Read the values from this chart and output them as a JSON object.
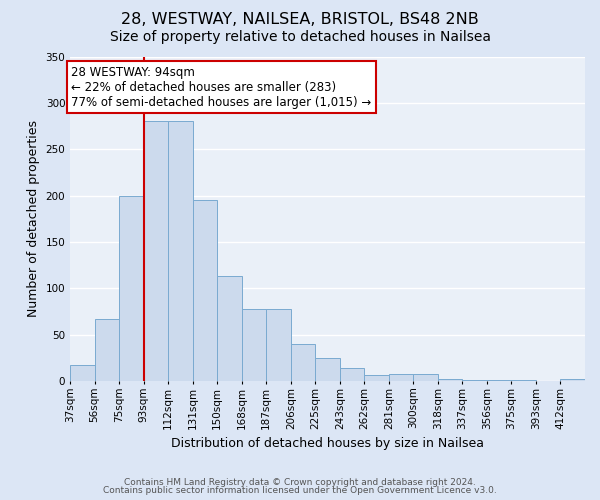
{
  "title": "28, WESTWAY, NAILSEA, BRISTOL, BS48 2NB",
  "subtitle": "Size of property relative to detached houses in Nailsea",
  "xlabel": "Distribution of detached houses by size in Nailsea",
  "ylabel": "Number of detached properties",
  "bin_labels": [
    "37sqm",
    "56sqm",
    "75sqm",
    "93sqm",
    "112sqm",
    "131sqm",
    "150sqm",
    "168sqm",
    "187sqm",
    "206sqm",
    "225sqm",
    "243sqm",
    "262sqm",
    "281sqm",
    "300sqm",
    "318sqm",
    "337sqm",
    "356sqm",
    "375sqm",
    "393sqm",
    "412sqm"
  ],
  "bar_heights": [
    17,
    67,
    200,
    280,
    280,
    195,
    113,
    78,
    78,
    40,
    25,
    14,
    6,
    7,
    7,
    2,
    1,
    1,
    1,
    0,
    2
  ],
  "bar_color": "#ccdaed",
  "bar_edge_color": "#7aaad0",
  "vline_color": "#cc0000",
  "vline_index": 3,
  "annotation_title": "28 WESTWAY: 94sqm",
  "annotation_line1": "← 22% of detached houses are smaller (283)",
  "annotation_line2": "77% of semi-detached houses are larger (1,015) →",
  "annotation_box_color": "#ffffff",
  "annotation_box_edge_color": "#cc0000",
  "ylim": [
    0,
    350
  ],
  "yticks": [
    0,
    50,
    100,
    150,
    200,
    250,
    300,
    350
  ],
  "footer1": "Contains HM Land Registry data © Crown copyright and database right 2024.",
  "footer2": "Contains public sector information licensed under the Open Government Licence v3.0.",
  "background_color": "#dce6f5",
  "plot_background_color": "#eaf0f8",
  "grid_color": "#ffffff",
  "title_fontsize": 11.5,
  "subtitle_fontsize": 10,
  "axis_label_fontsize": 9,
  "tick_fontsize": 7.5,
  "annotation_fontsize": 8.5,
  "footer_fontsize": 6.5
}
